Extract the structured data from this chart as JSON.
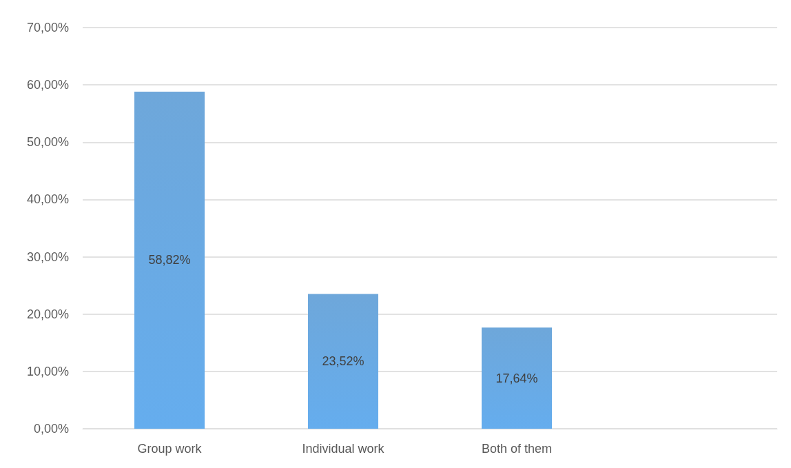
{
  "chart_data": {
    "type": "bar",
    "categories": [
      "Group work",
      "Individual work",
      "Both of them",
      null
    ],
    "values": [
      58.82,
      23.52,
      17.64,
      null
    ],
    "value_labels": [
      "58,82%",
      "23,52%",
      "17,64%",
      null
    ],
    "color": "#5b9bd5",
    "ylim": [
      0,
      70
    ],
    "yticks": [
      {
        "value": 0,
        "label": "0,00%"
      },
      {
        "value": 10,
        "label": "10,00%"
      },
      {
        "value": 20,
        "label": "20,00%"
      },
      {
        "value": 30,
        "label": "30,00%"
      },
      {
        "value": 40,
        "label": "40,00%"
      },
      {
        "value": 50,
        "label": "50,00%"
      },
      {
        "value": 60,
        "label": "60,00%"
      },
      {
        "value": 70,
        "label": "70,00%"
      }
    ],
    "grid": "y"
  }
}
